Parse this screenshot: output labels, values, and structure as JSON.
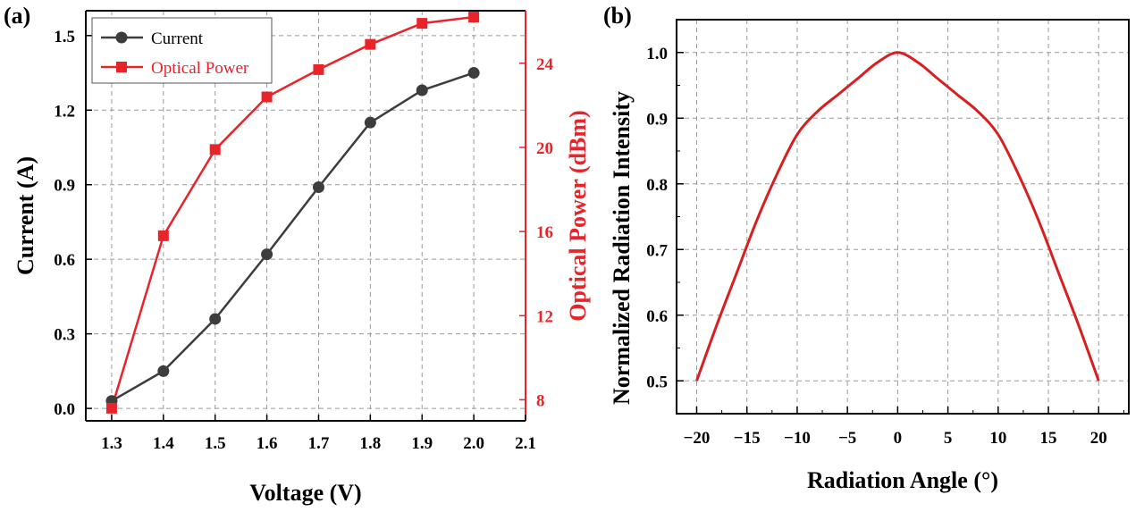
{
  "chart_data": [
    {
      "type": "line",
      "panel_label": "(a)",
      "xlabel": "Voltage (V)",
      "ylabel": "Current (A)",
      "y2label": "Optical Power (dBm)",
      "xlim": [
        1.25,
        2.1
      ],
      "ylim": [
        -0.05,
        1.6
      ],
      "y2lim": [
        7,
        26.5
      ],
      "x_ticks": [
        1.3,
        1.4,
        1.5,
        1.6,
        1.7,
        1.8,
        1.9,
        2.0,
        2.1
      ],
      "y_ticks": [
        0.0,
        0.3,
        0.6,
        0.9,
        1.2,
        1.5
      ],
      "y2_ticks": [
        8,
        12,
        16,
        20,
        24
      ],
      "grid": true,
      "legend_position": "top-left",
      "x": [
        1.3,
        1.4,
        1.5,
        1.6,
        1.7,
        1.8,
        1.9,
        2.0
      ],
      "series": [
        {
          "name": "Current",
          "axis": "left",
          "color": "#3d3d3d",
          "marker": "circle",
          "values": [
            0.03,
            0.15,
            0.36,
            0.62,
            0.89,
            1.15,
            1.28,
            1.35
          ]
        },
        {
          "name": "Optical Power",
          "axis": "right",
          "color": "#e8242a",
          "marker": "square",
          "values": [
            7.6,
            15.8,
            19.9,
            22.4,
            23.7,
            24.9,
            25.9,
            26.2
          ]
        }
      ]
    },
    {
      "type": "line",
      "panel_label": "(b)",
      "xlabel": "Radiation Angle (°)",
      "ylabel": "Normalized Radiation Intensity",
      "xlim": [
        -22,
        23
      ],
      "ylim": [
        0.45,
        1.05
      ],
      "x_ticks": [
        -20,
        -15,
        -10,
        -5,
        0,
        5,
        10,
        15,
        20
      ],
      "x_tick_labels": [
        "−20",
        "−15",
        "−10",
        "−5",
        "0",
        "5",
        "10",
        "15",
        "20"
      ],
      "y_ticks": [
        0.5,
        0.6,
        0.7,
        0.8,
        0.9,
        1.0
      ],
      "grid": true,
      "series": [
        {
          "color": "#d81e1e",
          "x": [
            -20,
            -18,
            -16,
            -14,
            -12,
            -10,
            -8,
            -6,
            -4,
            -2,
            0,
            2,
            4,
            6,
            8,
            10,
            12,
            14,
            16,
            18,
            20
          ],
          "values": [
            0.5,
            0.585,
            0.665,
            0.745,
            0.815,
            0.875,
            0.91,
            0.935,
            0.96,
            0.985,
            1.0,
            0.985,
            0.96,
            0.935,
            0.91,
            0.875,
            0.815,
            0.745,
            0.665,
            0.585,
            0.5
          ]
        }
      ]
    }
  ]
}
